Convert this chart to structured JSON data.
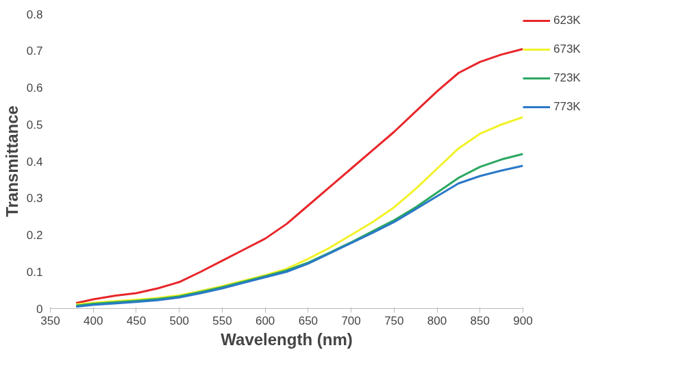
{
  "chart_data": {
    "type": "line",
    "xlabel": "Wavelength (nm)",
    "ylabel": "Transmittance",
    "xlim": [
      350,
      900
    ],
    "xticks": [
      350,
      400,
      450,
      500,
      550,
      600,
      650,
      700,
      750,
      800,
      850,
      900
    ],
    "ylim": [
      0,
      0.8
    ],
    "yticks": [
      0,
      0.1,
      0.2,
      0.3,
      0.4,
      0.5,
      0.6,
      0.7,
      0.8
    ],
    "grid": false,
    "legend": "right",
    "marker": "none",
    "line_style": "solid",
    "x": [
      380,
      400,
      425,
      450,
      475,
      500,
      525,
      550,
      575,
      600,
      625,
      650,
      675,
      700,
      725,
      750,
      775,
      800,
      825,
      850,
      875,
      900
    ],
    "series": [
      {
        "name": "623K",
        "color": "#e8262a",
        "values": [
          0.015,
          0.025,
          0.035,
          0.042,
          0.055,
          0.072,
          0.1,
          0.13,
          0.16,
          0.19,
          0.23,
          0.28,
          0.33,
          0.38,
          0.43,
          0.48,
          0.535,
          0.59,
          0.64,
          0.67,
          0.69,
          0.705
        ]
      },
      {
        "name": "673K",
        "color": "#f2f22a",
        "values": [
          0.011,
          0.016,
          0.02,
          0.024,
          0.029,
          0.036,
          0.048,
          0.061,
          0.076,
          0.091,
          0.108,
          0.135,
          0.165,
          0.2,
          0.235,
          0.275,
          0.325,
          0.38,
          0.435,
          0.475,
          0.5,
          0.52
        ]
      },
      {
        "name": "723K",
        "color": "#2aa860",
        "values": [
          0.008,
          0.013,
          0.017,
          0.021,
          0.026,
          0.033,
          0.045,
          0.058,
          0.073,
          0.088,
          0.104,
          0.125,
          0.152,
          0.18,
          0.21,
          0.24,
          0.275,
          0.315,
          0.355,
          0.385,
          0.405,
          0.42
        ]
      },
      {
        "name": "773K",
        "color": "#2a78c8",
        "values": [
          0.005,
          0.01,
          0.014,
          0.018,
          0.023,
          0.03,
          0.042,
          0.055,
          0.07,
          0.085,
          0.1,
          0.122,
          0.15,
          0.178,
          0.206,
          0.235,
          0.27,
          0.305,
          0.34,
          0.36,
          0.375,
          0.388
        ]
      }
    ]
  }
}
